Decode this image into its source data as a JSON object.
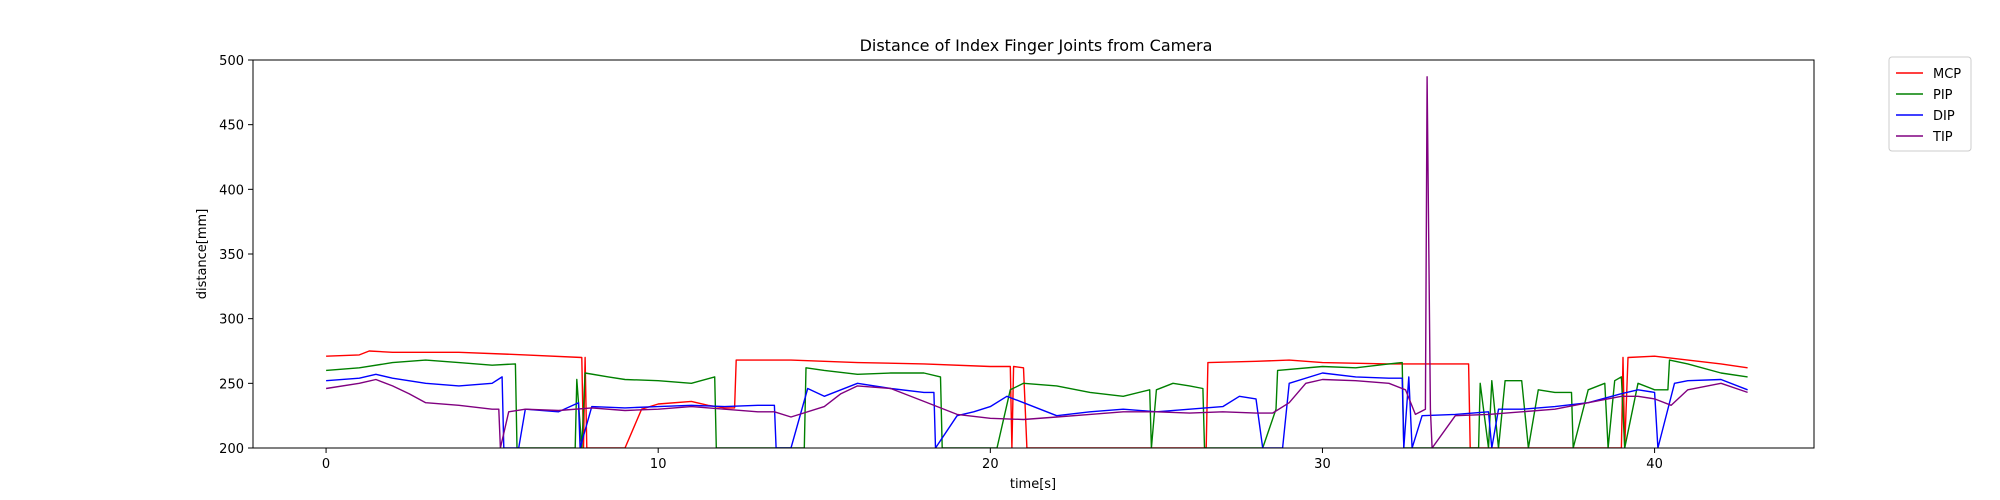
{
  "chart_data": {
    "type": "line",
    "title": "Distance of Index Finger Joints from Camera",
    "xlabel": "time[s]",
    "ylabel": "distance[mm]",
    "xlim": [
      -2.2,
      44.8
    ],
    "ylim": [
      200,
      500
    ],
    "xticks": [
      0,
      10,
      20,
      30,
      40
    ],
    "yticks": [
      200,
      250,
      300,
      350,
      400,
      450,
      500
    ],
    "grid": false,
    "legend_position": "outside-top-right",
    "series": [
      {
        "name": "MCP",
        "color": "#ff0000",
        "points": [
          [
            0,
            271
          ],
          [
            1,
            272
          ],
          [
            1.3,
            275
          ],
          [
            2,
            274
          ],
          [
            4,
            274
          ],
          [
            6,
            272
          ],
          [
            7.7,
            270
          ],
          [
            7.75,
            200
          ],
          [
            7.8,
            270
          ],
          [
            7.85,
            200
          ],
          [
            9,
            200
          ],
          [
            9.5,
            230
          ],
          [
            10,
            234
          ],
          [
            11,
            236
          ],
          [
            11.5,
            233
          ],
          [
            12,
            231
          ],
          [
            12.3,
            231
          ],
          [
            12.35,
            268
          ],
          [
            14,
            268
          ],
          [
            16,
            266
          ],
          [
            18,
            265
          ],
          [
            20,
            263
          ],
          [
            20.6,
            263
          ],
          [
            20.65,
            200
          ],
          [
            20.7,
            263
          ],
          [
            21,
            262
          ],
          [
            21.1,
            200
          ],
          [
            26.5,
            200
          ],
          [
            26.55,
            266
          ],
          [
            28,
            267
          ],
          [
            29,
            268
          ],
          [
            30,
            266
          ],
          [
            32,
            265
          ],
          [
            34,
            265
          ],
          [
            34.4,
            265
          ],
          [
            34.45,
            200
          ],
          [
            39,
            200
          ],
          [
            39.05,
            270
          ],
          [
            39.1,
            200
          ],
          [
            39.2,
            270
          ],
          [
            40,
            271
          ],
          [
            41,
            268
          ],
          [
            42,
            265
          ],
          [
            42.8,
            262
          ]
        ]
      },
      {
        "name": "PIP",
        "color": "#008000",
        "points": [
          [
            0,
            260
          ],
          [
            1,
            262
          ],
          [
            2,
            266
          ],
          [
            3,
            268
          ],
          [
            4,
            266
          ],
          [
            5,
            264
          ],
          [
            5.7,
            265
          ],
          [
            5.75,
            200
          ],
          [
            7.5,
            200
          ],
          [
            7.55,
            253
          ],
          [
            7.7,
            200
          ],
          [
            7.8,
            258
          ],
          [
            8.5,
            255
          ],
          [
            9,
            253
          ],
          [
            10,
            252
          ],
          [
            11,
            250
          ],
          [
            11.7,
            255
          ],
          [
            11.75,
            200
          ],
          [
            12.4,
            200
          ],
          [
            14.4,
            200
          ],
          [
            14.45,
            262
          ],
          [
            15,
            260
          ],
          [
            16,
            257
          ],
          [
            17,
            258
          ],
          [
            18,
            258
          ],
          [
            18.5,
            255
          ],
          [
            18.55,
            200
          ],
          [
            20.2,
            200
          ],
          [
            20.6,
            245
          ],
          [
            21,
            250
          ],
          [
            22,
            248
          ],
          [
            23,
            243
          ],
          [
            24,
            240
          ],
          [
            24.8,
            245
          ],
          [
            24.85,
            200
          ],
          [
            25,
            245
          ],
          [
            25.5,
            250
          ],
          [
            26,
            248
          ],
          [
            26.4,
            246
          ],
          [
            26.45,
            200
          ],
          [
            28.2,
            200
          ],
          [
            28.6,
            230
          ],
          [
            28.65,
            260
          ],
          [
            30,
            263
          ],
          [
            31,
            262
          ],
          [
            32,
            265
          ],
          [
            32.4,
            266
          ],
          [
            32.45,
            200
          ],
          [
            32.8,
            200
          ],
          [
            34.7,
            200
          ],
          [
            34.75,
            250
          ],
          [
            35,
            200
          ],
          [
            35.1,
            252
          ],
          [
            35.3,
            200
          ],
          [
            35.5,
            252
          ],
          [
            36,
            252
          ],
          [
            36.2,
            200
          ],
          [
            36.5,
            245
          ],
          [
            37,
            243
          ],
          [
            37.5,
            243
          ],
          [
            37.55,
            200
          ],
          [
            38,
            245
          ],
          [
            38.5,
            250
          ],
          [
            38.6,
            200
          ],
          [
            38.8,
            252
          ],
          [
            39,
            255
          ],
          [
            39.1,
            200
          ],
          [
            39.5,
            250
          ],
          [
            40,
            245
          ],
          [
            40.4,
            245
          ],
          [
            40.45,
            268
          ],
          [
            41,
            265
          ],
          [
            42,
            258
          ],
          [
            42.8,
            255
          ]
        ]
      },
      {
        "name": "DIP",
        "color": "#0000ff",
        "points": [
          [
            0,
            252
          ],
          [
            1,
            254
          ],
          [
            1.5,
            257
          ],
          [
            2,
            254
          ],
          [
            3,
            250
          ],
          [
            4,
            248
          ],
          [
            5,
            250
          ],
          [
            5.3,
            255
          ],
          [
            5.35,
            200
          ],
          [
            5.8,
            200
          ],
          [
            6,
            230
          ],
          [
            7,
            228
          ],
          [
            7.6,
            235
          ],
          [
            7.65,
            200
          ],
          [
            8,
            232
          ],
          [
            9,
            231
          ],
          [
            10,
            232
          ],
          [
            11,
            233
          ],
          [
            12,
            232
          ],
          [
            13,
            233
          ],
          [
            13.5,
            233
          ],
          [
            13.55,
            200
          ],
          [
            14,
            200
          ],
          [
            14.5,
            246
          ],
          [
            15,
            240
          ],
          [
            16,
            250
          ],
          [
            17,
            246
          ],
          [
            18,
            243
          ],
          [
            18.3,
            243
          ],
          [
            18.35,
            200
          ],
          [
            19,
            225
          ],
          [
            19.5,
            228
          ],
          [
            20,
            232
          ],
          [
            20.5,
            240
          ],
          [
            21,
            235
          ],
          [
            22,
            225
          ],
          [
            23,
            228
          ],
          [
            24,
            230
          ],
          [
            25,
            228
          ],
          [
            26,
            230
          ],
          [
            27,
            232
          ],
          [
            27.5,
            240
          ],
          [
            28,
            238
          ],
          [
            28.2,
            200
          ],
          [
            28.8,
            200
          ],
          [
            29,
            250
          ],
          [
            30,
            258
          ],
          [
            31,
            255
          ],
          [
            32,
            254
          ],
          [
            32.4,
            254
          ],
          [
            32.45,
            200
          ],
          [
            32.6,
            255
          ],
          [
            32.7,
            200
          ],
          [
            33,
            225
          ],
          [
            34,
            226
          ],
          [
            35,
            228
          ],
          [
            35.1,
            200
          ],
          [
            35.3,
            230
          ],
          [
            36,
            230
          ],
          [
            37,
            232
          ],
          [
            38,
            235
          ],
          [
            39,
            242
          ],
          [
            39.5,
            245
          ],
          [
            40,
            243
          ],
          [
            40.1,
            200
          ],
          [
            40.6,
            250
          ],
          [
            41,
            252
          ],
          [
            42,
            253
          ],
          [
            42.8,
            245
          ]
        ]
      },
      {
        "name": "TIP",
        "color": "#800080",
        "points": [
          [
            0,
            246
          ],
          [
            1,
            250
          ],
          [
            1.5,
            253
          ],
          [
            2,
            248
          ],
          [
            2.5,
            242
          ],
          [
            3,
            235
          ],
          [
            4,
            233
          ],
          [
            5,
            230
          ],
          [
            5.2,
            230
          ],
          [
            5.25,
            200
          ],
          [
            5.5,
            228
          ],
          [
            6,
            230
          ],
          [
            7,
            229
          ],
          [
            8,
            231
          ],
          [
            9,
            229
          ],
          [
            10,
            230
          ],
          [
            11,
            232
          ],
          [
            12,
            230
          ],
          [
            13,
            228
          ],
          [
            13.5,
            228
          ],
          [
            14,
            224
          ],
          [
            15,
            232
          ],
          [
            15.5,
            242
          ],
          [
            16,
            248
          ],
          [
            17,
            246
          ],
          [
            18,
            236
          ],
          [
            19,
            226
          ],
          [
            20,
            223
          ],
          [
            21,
            222
          ],
          [
            22,
            224
          ],
          [
            23,
            226
          ],
          [
            24,
            228
          ],
          [
            25,
            228
          ],
          [
            26,
            227
          ],
          [
            27,
            228
          ],
          [
            28,
            227
          ],
          [
            28.5,
            227
          ],
          [
            29,
            235
          ],
          [
            29.5,
            250
          ],
          [
            30,
            253
          ],
          [
            31,
            252
          ],
          [
            32,
            250
          ],
          [
            32.5,
            245
          ],
          [
            32.8,
            226
          ],
          [
            33.1,
            230
          ],
          [
            33.15,
            487
          ],
          [
            33.25,
            230
          ],
          [
            33.3,
            200
          ],
          [
            34,
            225
          ],
          [
            35,
            226
          ],
          [
            36,
            228
          ],
          [
            37,
            230
          ],
          [
            38,
            235
          ],
          [
            39,
            240
          ],
          [
            39.5,
            240
          ],
          [
            40,
            238
          ],
          [
            40.5,
            233
          ],
          [
            41,
            245
          ],
          [
            42,
            250
          ],
          [
            42.8,
            243
          ]
        ]
      }
    ]
  }
}
